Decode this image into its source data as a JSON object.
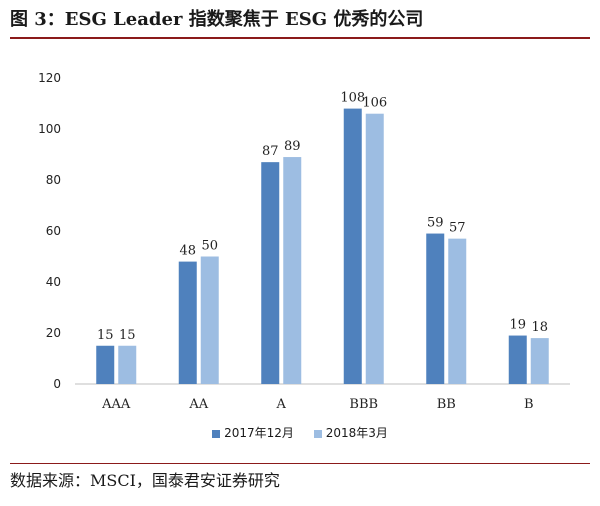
{
  "title": "图 3：ESG Leader 指数聚焦于 ESG 优秀的公司",
  "source": "数据来源：MSCI，国泰君安证券研究",
  "colors": {
    "series1": "#4f81bd",
    "series2": "#9dbde2",
    "rule": "#8b1a1a"
  },
  "chart_data": {
    "type": "bar",
    "title": "",
    "xlabel": "",
    "ylabel": "",
    "categories": [
      "AAA",
      "AA",
      "A",
      "BBB",
      "BB",
      "B"
    ],
    "series": [
      {
        "name": "2017年12月",
        "values": [
          15,
          48,
          87,
          108,
          59,
          19
        ]
      },
      {
        "name": "2018年3月",
        "values": [
          15,
          50,
          89,
          106,
          57,
          18
        ]
      }
    ],
    "ylim": [
      0,
      120
    ],
    "yticks": [
      0,
      20,
      40,
      60,
      80,
      100,
      120
    ],
    "grid": false,
    "legend": "bottom"
  }
}
